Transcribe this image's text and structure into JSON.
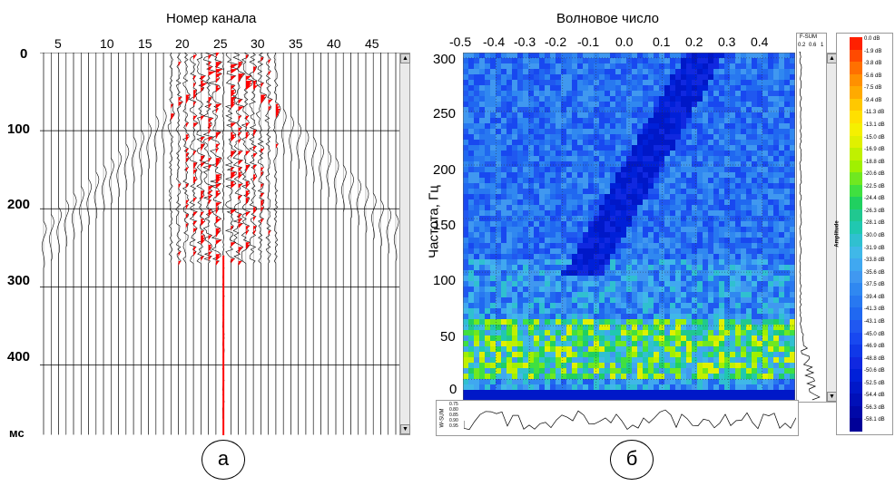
{
  "panel_a": {
    "title": "Номер канала",
    "x_ticks": [
      "5",
      "10",
      "15",
      "20",
      "25",
      "30",
      "35",
      "40",
      "45"
    ],
    "y_ticks": [
      "0",
      "100",
      "200",
      "300",
      "400"
    ],
    "y_unit": "мс",
    "label": "а"
  },
  "panel_b": {
    "title": "Волновое число",
    "x_ticks": [
      "-0.5",
      "-0.4",
      "-0.3",
      "-0.2",
      "-0.1",
      "0.0",
      "0.1",
      "0.2",
      "0.3",
      "0.4"
    ],
    "y_label": "Частота, Гц",
    "y_ticks": [
      "300",
      "250",
      "200",
      "150",
      "100",
      "50",
      "0"
    ],
    "fsum_title": "F-SUM",
    "fsum_ticks": [
      "0.2",
      "0.6",
      "1"
    ],
    "wsum_label": "W-SUM",
    "wsum_ticks": [
      "0.75",
      "0.80",
      "0.85",
      "0.90",
      "0.95"
    ],
    "amplitude_label": "Amplitude",
    "label": "б"
  },
  "colorbar": {
    "labels": [
      "0.0 dB",
      "-1.9 dB",
      "-3.8 dB",
      "-5.6 dB",
      "-7.5 dB",
      "-9.4 dB",
      "-11.3 dB",
      "-13.1 dB",
      "-15.0 dB",
      "-16.9 dB",
      "-18.8 dB",
      "-20.6 dB",
      "-22.5 dB",
      "-24.4 dB",
      "-26.3 dB",
      "-28.1 dB",
      "-30.0 dB",
      "-31.9 dB",
      "-33.8 dB",
      "-35.6 dB",
      "-37.5 dB",
      "-39.4 dB",
      "-41.3 dB",
      "-43.1 dB",
      "-45.0 dB",
      "-46.9 dB",
      "-48.8 dB",
      "-50.6 dB",
      "-52.5 dB",
      "-54.4 dB",
      "-56.3 dB",
      "-58.1 dB"
    ],
    "colors": [
      "#ff2000",
      "#ff4a00",
      "#ff7000",
      "#ff9000",
      "#ffaa00",
      "#ffc800",
      "#ffe000",
      "#f5f000",
      "#e0f000",
      "#c0f000",
      "#a0f000",
      "#70e820",
      "#40e040",
      "#20d060",
      "#20c890",
      "#20c8b0",
      "#30c0d0",
      "#40b8e8",
      "#40a8f0",
      "#4098f0",
      "#3088f0",
      "#2878f0",
      "#2068f0",
      "#2058f0",
      "#1848f0",
      "#1038e8",
      "#1028e0",
      "#0020d8",
      "#0018c8",
      "#0010b8",
      "#0008a8",
      "#000098"
    ]
  },
  "chart_data": [
    {
      "type": "seismogram",
      "title": "Номер канала",
      "xlabel": "Номер канала",
      "ylabel": "мс",
      "xlim": [
        1,
        48
      ],
      "ylim": [
        0,
        490
      ],
      "x_ticks": [
        5,
        10,
        15,
        20,
        25,
        30,
        35,
        40,
        45
      ],
      "y_ticks": [
        0,
        100,
        200,
        300,
        400
      ],
      "channels": 48,
      "source_channel": 25,
      "note": "wiggle traces with red-filled positive amplitudes concentrated at channels 17-32, 0-260 ms"
    },
    {
      "type": "heatmap",
      "title": "Волновое число",
      "xlabel": "Волновое число",
      "ylabel": "Частота, Гц",
      "xlim": [
        -0.5,
        0.5
      ],
      "ylim": [
        -10,
        305
      ],
      "x_ticks": [
        -0.5,
        -0.4,
        -0.3,
        -0.2,
        -0.1,
        0.0,
        0.1,
        0.2,
        0.3,
        0.4
      ],
      "y_ticks": [
        0,
        50,
        100,
        150,
        200,
        250,
        300
      ],
      "colorbar_range_db": [
        -58.1,
        0.0
      ],
      "note": "f-k spectrum; high energy (yellow/red) in 10-60 Hz band, diagonal low-energy lineation rising to the right"
    }
  ]
}
